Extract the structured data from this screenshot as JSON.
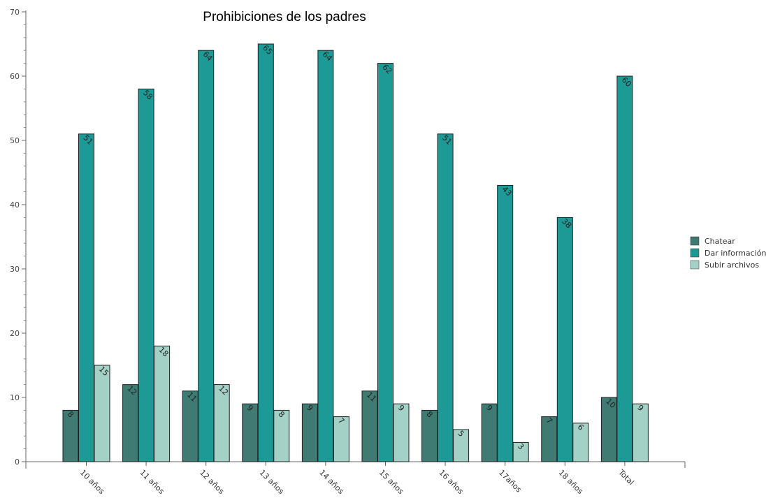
{
  "chart_data": {
    "type": "bar",
    "title": "Prohibiciones  de los padres",
    "xlabel": "",
    "ylabel": "",
    "ylim": [
      0,
      70
    ],
    "yticks": [
      0,
      10,
      20,
      30,
      40,
      50,
      60,
      70
    ],
    "categories": [
      "10 años",
      "11 años",
      "12 años",
      "13 años",
      "14 años",
      "15 años",
      "16 años",
      "17años",
      "18 años",
      "Total"
    ],
    "series": [
      {
        "name": "Chatear",
        "color": "#3f7b73",
        "values": [
          8,
          12,
          11,
          9,
          9,
          11,
          8,
          9,
          7,
          10
        ]
      },
      {
        "name": "Dar información",
        "color": "#1e9a96",
        "values": [
          51,
          58,
          64,
          65,
          64,
          62,
          51,
          43,
          38,
          60
        ]
      },
      {
        "name": "Subir archivos",
        "color": "#a3d1c6",
        "values": [
          15,
          18,
          12,
          8,
          7,
          9,
          5,
          3,
          6,
          9
        ]
      }
    ],
    "grid": false,
    "legend_position": "right"
  }
}
